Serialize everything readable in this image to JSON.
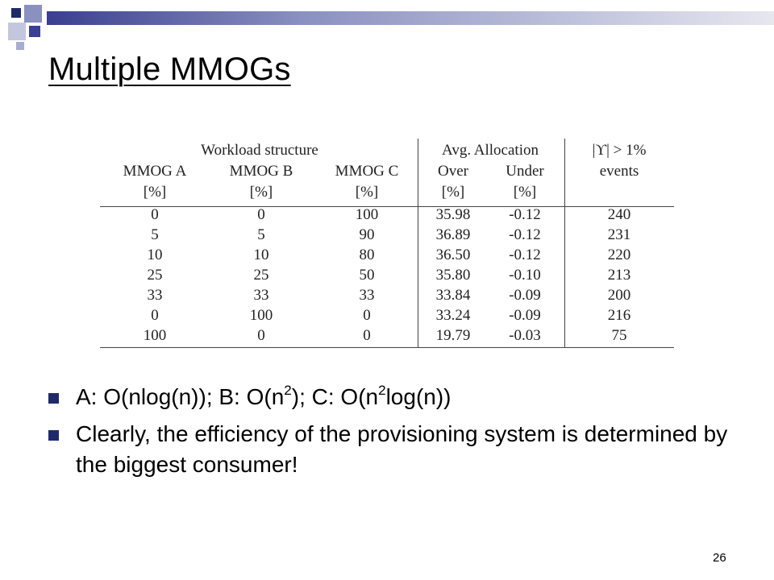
{
  "slide": {
    "title": "Multiple MMOGs",
    "page_number": "26"
  },
  "table": {
    "group_headers": {
      "workload": "Workload structure",
      "allocation": "Avg. Allocation",
      "events": "|ϒ| > 1%"
    },
    "columns": [
      {
        "name": "MMOG A",
        "unit": "[%]"
      },
      {
        "name": "MMOG B",
        "unit": "[%]"
      },
      {
        "name": "MMOG C",
        "unit": "[%]"
      },
      {
        "name": "Over",
        "unit": "[%]"
      },
      {
        "name": "Under",
        "unit": "[%]"
      },
      {
        "name": "events",
        "unit": ""
      }
    ],
    "rows": [
      [
        "0",
        "0",
        "100",
        "35.98",
        "-0.12",
        "240"
      ],
      [
        "5",
        "5",
        "90",
        "36.89",
        "-0.12",
        "231"
      ],
      [
        "10",
        "10",
        "80",
        "36.50",
        "-0.12",
        "220"
      ],
      [
        "25",
        "25",
        "50",
        "35.80",
        "-0.10",
        "213"
      ],
      [
        "33",
        "33",
        "33",
        "33.84",
        "-0.09",
        "200"
      ],
      [
        "0",
        "100",
        "0",
        "33.24",
        "-0.09",
        "216"
      ],
      [
        "100",
        "0",
        "0",
        "19.79",
        "-0.03",
        "75"
      ]
    ]
  },
  "bullets": {
    "b1": {
      "p1": "A: O(nlog(n)); B: O(n",
      "s1": "2",
      "p2": "); C: O(n",
      "s2": "2",
      "p3": "log(n))"
    },
    "b2": "Clearly, the efficiency of the provisioning system is determined by the biggest consumer!"
  },
  "colors": {
    "accent": "#1f2a6b",
    "bar_start": "#3a3f8f"
  }
}
